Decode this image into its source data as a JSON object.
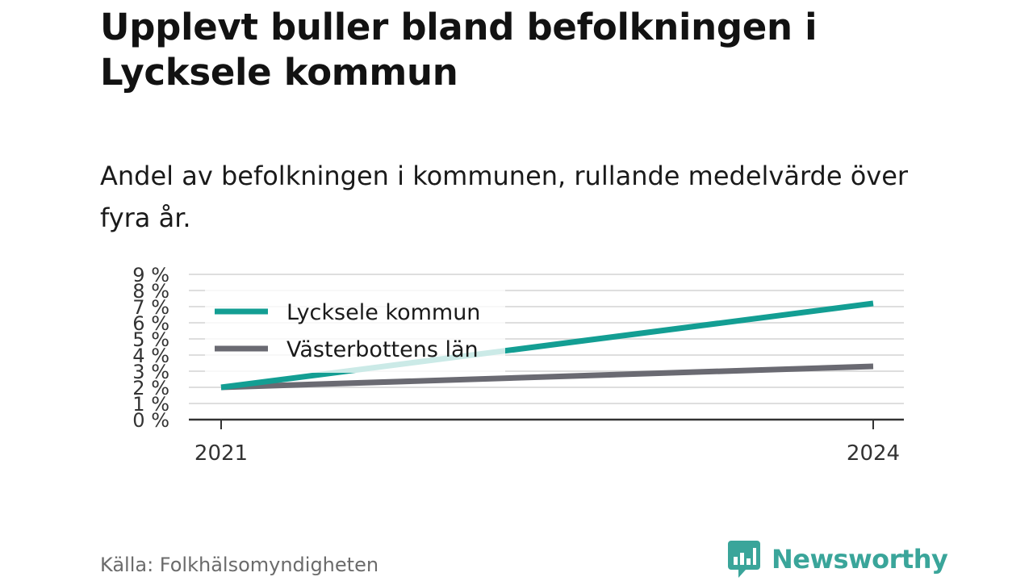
{
  "header": {
    "title": "Upplevt buller bland befolkningen i Lycksele kommun",
    "subtitle": "Andel av befolkningen i kommunen, rullande medelvärde över fyra år."
  },
  "footer": {
    "source": "Källa: Folkhälsomyndigheten",
    "brand": "Newsworthy",
    "brand_icon": "bar-chart-speech-bubble-icon"
  },
  "colors": {
    "series_1": "#139e93",
    "series_2": "#6a6a72",
    "brand": "#3aa59a"
  },
  "chart_data": {
    "type": "line",
    "x": [
      "2021",
      "2024"
    ],
    "series": [
      {
        "name": "Lycksele kommun",
        "values": [
          2,
          7.2
        ]
      },
      {
        "name": "Västerbottens län",
        "values": [
          2,
          3.3
        ]
      }
    ],
    "ylim": [
      0,
      9
    ],
    "y_ticks": [
      {
        "value": 0,
        "label": "0 %"
      },
      {
        "value": 1,
        "label": "1 %"
      },
      {
        "value": 2,
        "label": "2 %"
      },
      {
        "value": 3,
        "label": "3 %"
      },
      {
        "value": 4,
        "label": "4 %"
      },
      {
        "value": 5,
        "label": "5 %"
      },
      {
        "value": 6,
        "label": "6 %"
      },
      {
        "value": 7,
        "label": "7 %"
      },
      {
        "value": 8,
        "label": "8 %"
      },
      {
        "value": 9,
        "label": "9 %"
      }
    ],
    "x_ticks": [
      "2021",
      "2024"
    ],
    "grid": true,
    "legend": "top-left"
  }
}
